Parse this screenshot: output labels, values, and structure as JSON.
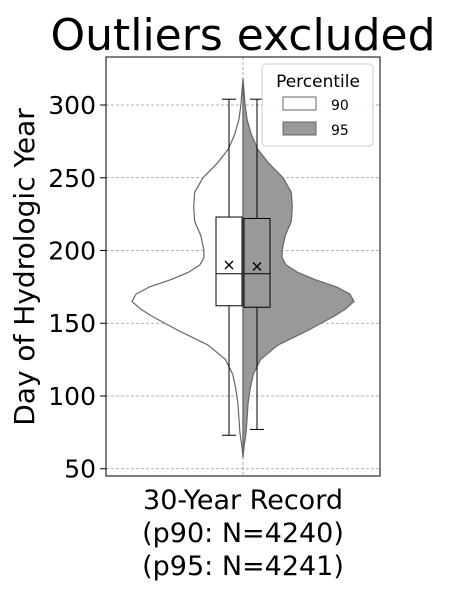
{
  "chart_data": {
    "type": "violin",
    "title": "Outliers excluded",
    "ylabel": "Day of Hydrologic Year",
    "xlabel": "",
    "ylim": [
      45,
      333
    ],
    "yticks": [
      50,
      100,
      150,
      200,
      250,
      300
    ],
    "grid": true,
    "category": {
      "label_lines": [
        "30-Year Record",
        "(p90: N=4240)",
        "(p95: N=4241)"
      ]
    },
    "legend": {
      "title": "Percentile",
      "placement": "top-right",
      "entries": [
        {
          "label": "90",
          "color": "#ffffff"
        },
        {
          "label": "95",
          "color": "#999999"
        }
      ]
    },
    "series": [
      {
        "name": "90",
        "side": "left",
        "color": "#ffffff",
        "density": [
          [
            58,
            0
          ],
          [
            65,
            1
          ],
          [
            75,
            3
          ],
          [
            85,
            4
          ],
          [
            95,
            5
          ],
          [
            105,
            7
          ],
          [
            115,
            10
          ],
          [
            125,
            17
          ],
          [
            135,
            34
          ],
          [
            145,
            63
          ],
          [
            155,
            89
          ],
          [
            160,
            100
          ],
          [
            165,
            108
          ],
          [
            170,
            104
          ],
          [
            175,
            91
          ],
          [
            180,
            70
          ],
          [
            185,
            53
          ],
          [
            190,
            42
          ],
          [
            195,
            38
          ],
          [
            200,
            38
          ],
          [
            210,
            41
          ],
          [
            220,
            47
          ],
          [
            230,
            48
          ],
          [
            240,
            47
          ],
          [
            250,
            39
          ],
          [
            260,
            25
          ],
          [
            270,
            14
          ],
          [
            280,
            8
          ],
          [
            290,
            4
          ],
          [
            300,
            2
          ],
          [
            310,
            1
          ],
          [
            318,
            0
          ]
        ],
        "box": {
          "q1": 162,
          "median": 184,
          "q3": 223,
          "mean": 190,
          "whisker_low": 73,
          "whisker_high": 304
        }
      },
      {
        "name": "95",
        "side": "right",
        "color": "#999999",
        "density": [
          [
            58,
            0
          ],
          [
            65,
            1
          ],
          [
            75,
            3
          ],
          [
            85,
            4
          ],
          [
            95,
            5
          ],
          [
            105,
            7
          ],
          [
            115,
            10
          ],
          [
            125,
            17
          ],
          [
            135,
            34
          ],
          [
            145,
            63
          ],
          [
            155,
            89
          ],
          [
            160,
            100
          ],
          [
            165,
            108
          ],
          [
            170,
            104
          ],
          [
            175,
            91
          ],
          [
            180,
            70
          ],
          [
            185,
            53
          ],
          [
            190,
            42
          ],
          [
            195,
            38
          ],
          [
            200,
            38
          ],
          [
            210,
            41
          ],
          [
            220,
            47
          ],
          [
            230,
            48
          ],
          [
            240,
            47
          ],
          [
            250,
            39
          ],
          [
            260,
            25
          ],
          [
            270,
            14
          ],
          [
            280,
            8
          ],
          [
            290,
            4
          ],
          [
            300,
            2
          ],
          [
            310,
            1
          ],
          [
            318,
            0
          ]
        ],
        "box": {
          "q1": 161,
          "median": 184,
          "q3": 222,
          "mean": 189,
          "whisker_low": 77,
          "whisker_high": 304
        }
      }
    ]
  }
}
